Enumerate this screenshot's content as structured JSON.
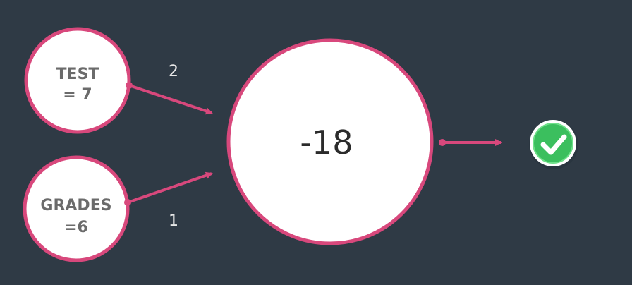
{
  "colors": {
    "background": "#2f3a45",
    "node_stroke": "#d8487c",
    "node_fill": "#ffffff",
    "arrow": "#d8487c",
    "check_fill": "#3bbf5e",
    "check_ring": "#6fe08a"
  },
  "inputs": [
    {
      "line1": "TEST",
      "line2": "= 7",
      "weight": "2"
    },
    {
      "line1": "GRADES",
      "line2": "=6",
      "weight": "1"
    }
  ],
  "output": {
    "value": "-18"
  },
  "result_icon": "checkmark-icon"
}
